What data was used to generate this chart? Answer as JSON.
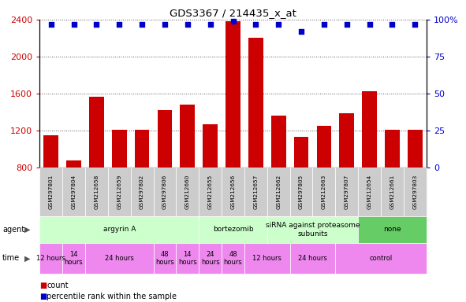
{
  "title": "GDS3367 / 214435_x_at",
  "samples": [
    "GSM297801",
    "GSM297804",
    "GSM212658",
    "GSM212659",
    "GSM297802",
    "GSM297806",
    "GSM212660",
    "GSM212655",
    "GSM212656",
    "GSM212657",
    "GSM212662",
    "GSM297805",
    "GSM212663",
    "GSM297807",
    "GSM212654",
    "GSM212661",
    "GSM297803"
  ],
  "counts": [
    1150,
    880,
    1570,
    1210,
    1210,
    1420,
    1480,
    1270,
    2380,
    2200,
    1360,
    1130,
    1250,
    1390,
    1630,
    1210,
    1210
  ],
  "percentiles": [
    97,
    97,
    97,
    97,
    97,
    97,
    97,
    97,
    99,
    97,
    97,
    92,
    97,
    97,
    97,
    97,
    97
  ],
  "bar_color": "#cc0000",
  "dot_color": "#0000cc",
  "ylim_left": [
    800,
    2400
  ],
  "ylim_right": [
    0,
    100
  ],
  "yticks_left": [
    800,
    1200,
    1600,
    2000,
    2400
  ],
  "yticks_right": [
    0,
    25,
    50,
    75,
    100
  ],
  "agent_row": [
    {
      "label": "argyrin A",
      "start": 0,
      "end": 7,
      "color": "#ccffcc"
    },
    {
      "label": "bortezomib",
      "start": 7,
      "end": 10,
      "color": "#ccffcc"
    },
    {
      "label": "siRNA against proteasome\nsubunits",
      "start": 10,
      "end": 14,
      "color": "#ccffcc"
    },
    {
      "label": "none",
      "start": 14,
      "end": 17,
      "color": "#66cc66"
    }
  ],
  "time_row": [
    {
      "label": "12 hours",
      "start": 0,
      "end": 1,
      "color": "#ee88ee"
    },
    {
      "label": "14\nhours",
      "start": 1,
      "end": 2,
      "color": "#ee88ee"
    },
    {
      "label": "24 hours",
      "start": 2,
      "end": 5,
      "color": "#ee88ee"
    },
    {
      "label": "48\nhours",
      "start": 5,
      "end": 6,
      "color": "#ee88ee"
    },
    {
      "label": "14\nhours",
      "start": 6,
      "end": 7,
      "color": "#ee88ee"
    },
    {
      "label": "24\nhours",
      "start": 7,
      "end": 8,
      "color": "#ee88ee"
    },
    {
      "label": "48\nhours",
      "start": 8,
      "end": 9,
      "color": "#ee88ee"
    },
    {
      "label": "12 hours",
      "start": 9,
      "end": 11,
      "color": "#ee88ee"
    },
    {
      "label": "24 hours",
      "start": 11,
      "end": 13,
      "color": "#ee88ee"
    },
    {
      "label": "control",
      "start": 13,
      "end": 17,
      "color": "#ee88ee"
    }
  ],
  "legend_count_color": "#cc0000",
  "legend_dot_color": "#0000cc",
  "bg_color": "#ffffff",
  "sample_bg_color": "#cccccc",
  "grid_color": "#555555",
  "chart_bg_color": "#ffffff"
}
